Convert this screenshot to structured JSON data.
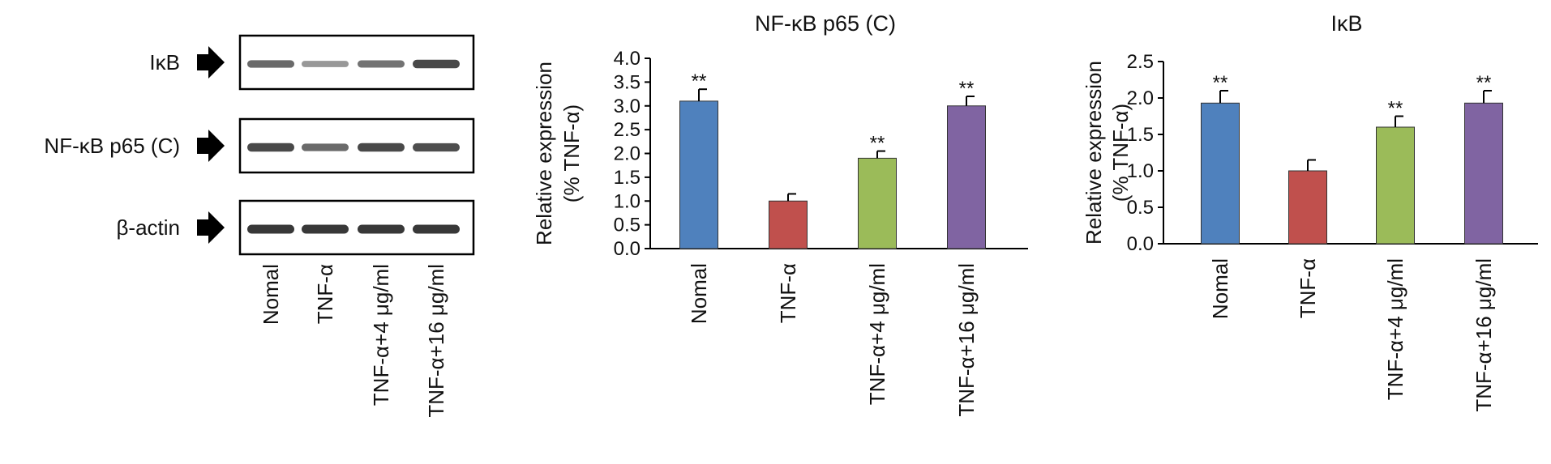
{
  "blot_panel": {
    "rows": [
      {
        "label": "IκB"
      },
      {
        "label": "NF-κB p65 (C)"
      },
      {
        "label": "β-actin"
      }
    ],
    "lanes": [
      "Nomal",
      "TNF-α",
      "TNF-α+4 μg/ml",
      "TNF-α+16 μg/ml"
    ],
    "band_intensity": [
      [
        0.55,
        0.28,
        0.5,
        0.75
      ],
      [
        0.75,
        0.55,
        0.75,
        0.72
      ],
      [
        0.85,
        0.85,
        0.85,
        0.85
      ]
    ]
  },
  "chart_data": [
    {
      "type": "bar",
      "title": "NF-κB p65 (C)",
      "ylabel_line1": "Relative expression",
      "ylabel_line2": "(% TNF-α)",
      "categories": [
        "Nomal",
        "TNF-α",
        "TNF-α+4 μg/ml",
        "TNF-α+16 μg/ml"
      ],
      "values": [
        3.1,
        1.0,
        1.9,
        3.0
      ],
      "errors": [
        0.25,
        0.15,
        0.15,
        0.2
      ],
      "significance": [
        "**",
        "",
        "**",
        "**"
      ],
      "colors": [
        "#4f81bd",
        "#c0504d",
        "#9bbb59",
        "#8064a2"
      ],
      "ylim": [
        0,
        4.0
      ],
      "yticks": [
        "0.0",
        "0.5",
        "1.0",
        "1.5",
        "2.0",
        "2.5",
        "3.0",
        "3.5",
        "4.0"
      ],
      "grid": false
    },
    {
      "type": "bar",
      "title": "IκB",
      "ylabel_line1": "Relative expression",
      "ylabel_line2": "(% TNF-α)",
      "categories": [
        "Nomal",
        "TNF-α",
        "TNF-α+4 μg/ml",
        "TNF-α+16 μg/ml"
      ],
      "values": [
        1.93,
        1.0,
        1.6,
        1.93
      ],
      "errors": [
        0.17,
        0.15,
        0.15,
        0.17
      ],
      "significance": [
        "**",
        "",
        "**",
        "**"
      ],
      "colors": [
        "#4f81bd",
        "#c0504d",
        "#9bbb59",
        "#8064a2"
      ],
      "ylim": [
        0,
        2.5
      ],
      "yticks": [
        "0.0",
        "0.5",
        "1.0",
        "1.5",
        "2.0",
        "2.5"
      ],
      "grid": false
    }
  ]
}
